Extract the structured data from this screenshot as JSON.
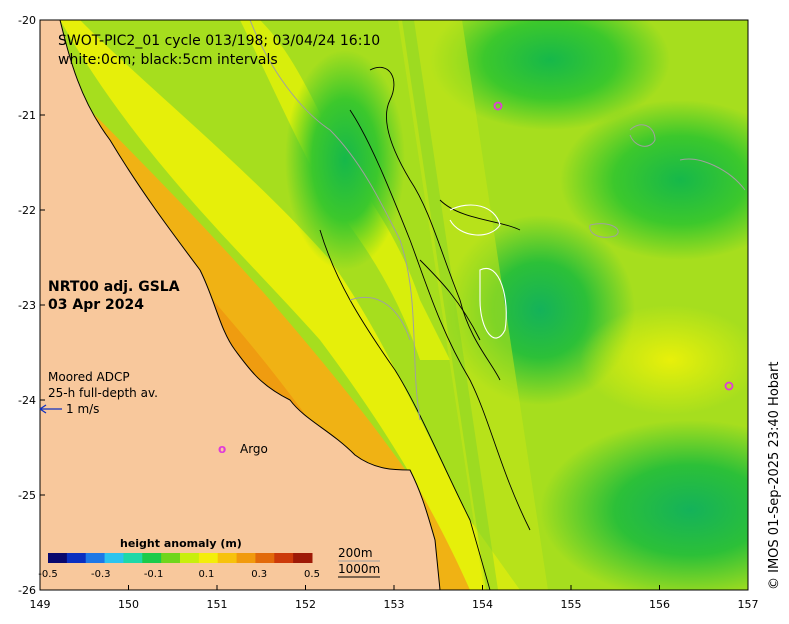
{
  "title_line1": "SWOT-PIC2_01 cycle 013/198; 03/04/24 16:10",
  "title_line2": "white:0cm; black:5cm intervals",
  "product_line1": "NRT00 adj. GSLA",
  "product_line2": "03 Apr 2024",
  "adcp_line1": "Moored ADCP",
  "adcp_line2": "25-h full-depth av.",
  "adcp_scale_label": "1 m/s",
  "argo_marker": "o",
  "argo_label": "Argo",
  "colorbar": {
    "title": "height anomaly (m)",
    "ticks": [
      "-0.5",
      "-0.3",
      "-0.1",
      "0.1",
      "0.3",
      "0.5"
    ],
    "colors": [
      "#08086e",
      "#0a2fc0",
      "#1e78e6",
      "#2cc4ee",
      "#1fd8a8",
      "#1ccb4a",
      "#6fd61c",
      "#c8ef0c",
      "#f4ee0a",
      "#f7c20c",
      "#f19a0d",
      "#e26a0b",
      "#cc3a0a",
      "#9e1a07"
    ]
  },
  "isobaths": [
    "200m",
    "1000m"
  ],
  "x_ticks": [
    "149",
    "150",
    "151",
    "152",
    "153",
    "154",
    "155",
    "156",
    "157"
  ],
  "y_ticks": [
    "-20",
    "-21",
    "-22",
    "-23",
    "-24",
    "-25",
    "-26"
  ],
  "credit": "© IMOS 01-Sep-2025 23:40 Hobart",
  "colors": {
    "land": "#f8c89c",
    "background_field": "#a8e01c",
    "argo": "#e03cd8"
  }
}
